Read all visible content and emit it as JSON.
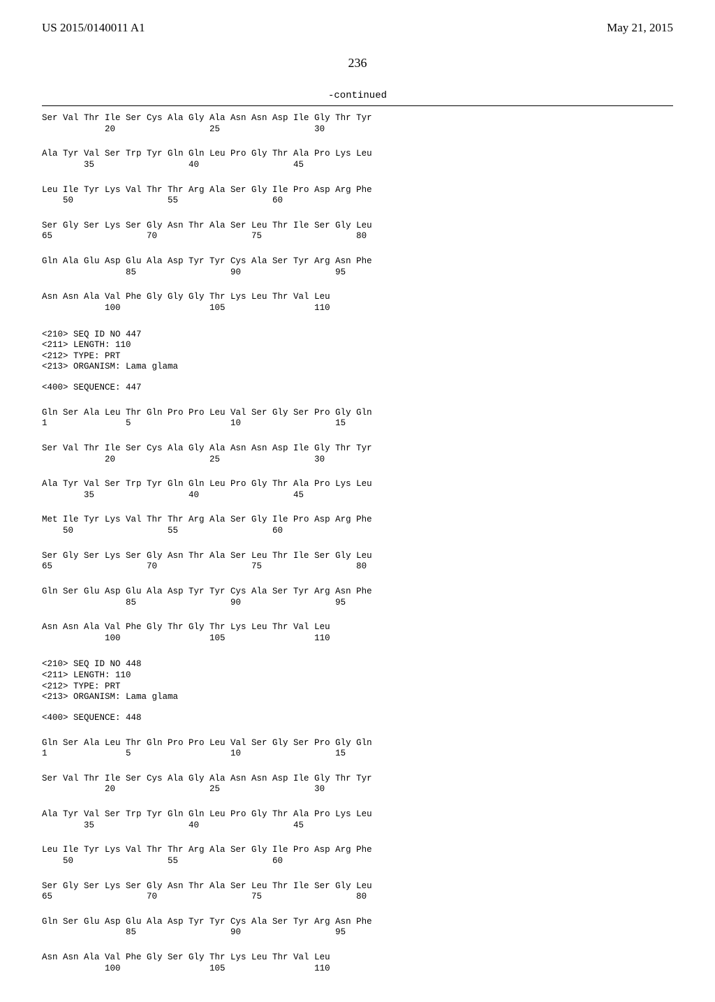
{
  "header": {
    "publication_number": "US 2015/0140011 A1",
    "publication_date": "May 21, 2015"
  },
  "page_number": "236",
  "continued_label": "-continued",
  "sequences": [
    {
      "rows": [
        {
          "aa": "Ser Val Thr Ile Ser Cys Ala Gly Ala Asn Asn Asp Ile Gly Thr Tyr",
          "nums": "            20                  25                  30"
        },
        {
          "aa": "Ala Tyr Val Ser Trp Tyr Gln Gln Leu Pro Gly Thr Ala Pro Lys Leu",
          "nums": "        35                  40                  45"
        },
        {
          "aa": "Leu Ile Tyr Lys Val Thr Thr Arg Ala Ser Gly Ile Pro Asp Arg Phe",
          "nums": "    50                  55                  60"
        },
        {
          "aa": "Ser Gly Ser Lys Ser Gly Asn Thr Ala Ser Leu Thr Ile Ser Gly Leu",
          "nums": "65                  70                  75                  80"
        },
        {
          "aa": "Gln Ala Glu Asp Glu Ala Asp Tyr Tyr Cys Ala Ser Tyr Arg Asn Phe",
          "nums": "                85                  90                  95"
        },
        {
          "aa": "Asn Asn Ala Val Phe Gly Gly Gly Thr Lys Leu Thr Val Leu",
          "nums": "            100                 105                 110"
        }
      ]
    },
    {
      "meta": [
        "<210> SEQ ID NO 447",
        "<211> LENGTH: 110",
        "<212> TYPE: PRT",
        "<213> ORGANISM: Lama glama"
      ],
      "sequence_label": "<400> SEQUENCE: 447",
      "rows": [
        {
          "aa": "Gln Ser Ala Leu Thr Gln Pro Pro Leu Val Ser Gly Ser Pro Gly Gln",
          "nums": "1               5                   10                  15"
        },
        {
          "aa": "Ser Val Thr Ile Ser Cys Ala Gly Ala Asn Asn Asp Ile Gly Thr Tyr",
          "nums": "            20                  25                  30"
        },
        {
          "aa": "Ala Tyr Val Ser Trp Tyr Gln Gln Leu Pro Gly Thr Ala Pro Lys Leu",
          "nums": "        35                  40                  45"
        },
        {
          "aa": "Met Ile Tyr Lys Val Thr Thr Arg Ala Ser Gly Ile Pro Asp Arg Phe",
          "nums": "    50                  55                  60"
        },
        {
          "aa": "Ser Gly Ser Lys Ser Gly Asn Thr Ala Ser Leu Thr Ile Ser Gly Leu",
          "nums": "65                  70                  75                  80"
        },
        {
          "aa": "Gln Ser Glu Asp Glu Ala Asp Tyr Tyr Cys Ala Ser Tyr Arg Asn Phe",
          "nums": "                85                  90                  95"
        },
        {
          "aa": "Asn Asn Ala Val Phe Gly Thr Gly Thr Lys Leu Thr Val Leu",
          "nums": "            100                 105                 110"
        }
      ]
    },
    {
      "meta": [
        "<210> SEQ ID NO 448",
        "<211> LENGTH: 110",
        "<212> TYPE: PRT",
        "<213> ORGANISM: Lama glama"
      ],
      "sequence_label": "<400> SEQUENCE: 448",
      "rows": [
        {
          "aa": "Gln Ser Ala Leu Thr Gln Pro Pro Leu Val Ser Gly Ser Pro Gly Gln",
          "nums": "1               5                   10                  15"
        },
        {
          "aa": "Ser Val Thr Ile Ser Cys Ala Gly Ala Asn Asn Asp Ile Gly Thr Tyr",
          "nums": "            20                  25                  30"
        },
        {
          "aa": "Ala Tyr Val Ser Trp Tyr Gln Gln Leu Pro Gly Thr Ala Pro Lys Leu",
          "nums": "        35                  40                  45"
        },
        {
          "aa": "Leu Ile Tyr Lys Val Thr Thr Arg Ala Ser Gly Ile Pro Asp Arg Phe",
          "nums": "    50                  55                  60"
        },
        {
          "aa": "Ser Gly Ser Lys Ser Gly Asn Thr Ala Ser Leu Thr Ile Ser Gly Leu",
          "nums": "65                  70                  75                  80"
        },
        {
          "aa": "Gln Ser Glu Asp Glu Ala Asp Tyr Tyr Cys Ala Ser Tyr Arg Asn Phe",
          "nums": "                85                  90                  95"
        },
        {
          "aa": "Asn Asn Ala Val Phe Gly Ser Gly Thr Lys Leu Thr Val Leu",
          "nums": "            100                 105                 110"
        }
      ]
    }
  ]
}
